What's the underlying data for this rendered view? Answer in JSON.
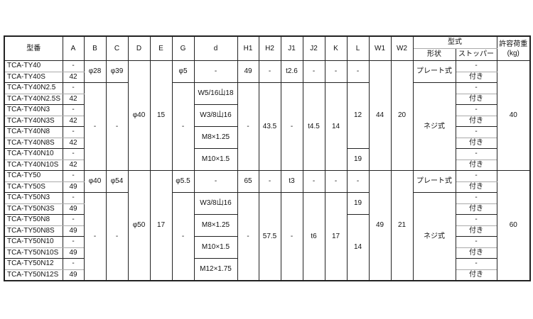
{
  "header": {
    "top": [
      [
        "型番",
        2,
        1
      ],
      [
        "A",
        2,
        1
      ],
      [
        "B",
        2,
        1
      ],
      [
        "C",
        2,
        1
      ],
      [
        "D",
        2,
        1
      ],
      [
        "E",
        2,
        1
      ],
      [
        "G",
        2,
        1
      ],
      [
        "d",
        2,
        1
      ],
      [
        "H1",
        2,
        1
      ],
      [
        "H2",
        2,
        1
      ],
      [
        "J1",
        2,
        1
      ],
      [
        "J2",
        2,
        1
      ],
      [
        "K",
        2,
        1
      ],
      [
        "L",
        2,
        1
      ],
      [
        "W1",
        2,
        1
      ],
      [
        "W2",
        2,
        1
      ],
      [
        "型式",
        1,
        2
      ],
      [
        "許容荷重\n(kg)",
        2,
        1
      ]
    ],
    "sub": [
      "形状",
      "ストッパー"
    ]
  },
  "rows": [
    [
      [
        "TCA-TY40",
        1
      ],
      [
        "-",
        1
      ],
      [
        "φ28",
        2
      ],
      [
        "φ39",
        2
      ],
      [
        "φ40",
        10
      ],
      [
        "15",
        10
      ],
      [
        "φ5",
        2
      ],
      [
        "-",
        2
      ],
      [
        "49",
        2
      ],
      [
        "-",
        2
      ],
      [
        "t2.6",
        2
      ],
      [
        "-",
        2
      ],
      [
        "-",
        2
      ],
      [
        "-",
        2
      ],
      [
        "44",
        10
      ],
      [
        "20",
        10
      ],
      [
        "プレート式",
        2
      ],
      [
        "-",
        1
      ],
      [
        "40",
        10
      ]
    ],
    [
      [
        "TCA-TY40S",
        1
      ],
      [
        "42",
        1
      ],
      [
        "付き",
        1
      ]
    ],
    [
      [
        "TCA-TY40N2.5",
        1
      ],
      [
        "-",
        1
      ],
      [
        "-",
        8
      ],
      [
        "-",
        8
      ],
      [
        "-",
        8
      ],
      [
        "W5/16山18",
        2
      ],
      [
        "-",
        8
      ],
      [
        "43.5",
        8
      ],
      [
        "-",
        8
      ],
      [
        "t4.5",
        8
      ],
      [
        "14",
        8
      ],
      [
        "12",
        6
      ],
      [
        "ネジ式",
        8
      ],
      [
        "-",
        1
      ]
    ],
    [
      [
        "TCA-TY40N2.5S",
        1
      ],
      [
        "42",
        1
      ],
      [
        "付き",
        1
      ]
    ],
    [
      [
        "TCA-TY40N3",
        1
      ],
      [
        "-",
        1
      ],
      [
        "W3/8山16",
        2
      ],
      [
        "-",
        1
      ]
    ],
    [
      [
        "TCA-TY40N3S",
        1
      ],
      [
        "42",
        1
      ],
      [
        "付き",
        1
      ]
    ],
    [
      [
        "TCA-TY40N8",
        1
      ],
      [
        "-",
        1
      ],
      [
        "M8×1.25",
        2
      ],
      [
        "-",
        1
      ]
    ],
    [
      [
        "TCA-TY40N8S",
        1
      ],
      [
        "42",
        1
      ],
      [
        "付き",
        1
      ]
    ],
    [
      [
        "TCA-TY40N10",
        1
      ],
      [
        "-",
        1
      ],
      [
        "M10×1.5",
        2
      ],
      [
        "19",
        2
      ],
      [
        "-",
        1
      ]
    ],
    [
      [
        "TCA-TY40N10S",
        1
      ],
      [
        "42",
        1
      ],
      [
        "付き",
        1
      ]
    ],
    [
      [
        "TCA-TY50",
        1
      ],
      [
        "-",
        1
      ],
      [
        "φ40",
        2
      ],
      [
        "φ54",
        2
      ],
      [
        "φ50",
        10
      ],
      [
        "17",
        10
      ],
      [
        "φ5.5",
        2
      ],
      [
        "-",
        2
      ],
      [
        "65",
        2
      ],
      [
        "-",
        2
      ],
      [
        "t3",
        2
      ],
      [
        "-",
        2
      ],
      [
        "-",
        2
      ],
      [
        "-",
        2
      ],
      [
        "49",
        10
      ],
      [
        "21",
        10
      ],
      [
        "プレート式",
        2
      ],
      [
        "-",
        1
      ],
      [
        "60",
        10
      ]
    ],
    [
      [
        "TCA-TY50S",
        1
      ],
      [
        "49",
        1
      ],
      [
        "付き",
        1
      ]
    ],
    [
      [
        "TCA-TY50N3",
        1
      ],
      [
        "-",
        1
      ],
      [
        "-",
        8
      ],
      [
        "-",
        8
      ],
      [
        "-",
        8
      ],
      [
        "W3/8山16",
        2
      ],
      [
        "-",
        8
      ],
      [
        "57.5",
        8
      ],
      [
        "-",
        8
      ],
      [
        "t6",
        8
      ],
      [
        "17",
        8
      ],
      [
        "19",
        2
      ],
      [
        "ネジ式",
        8
      ],
      [
        "-",
        1
      ]
    ],
    [
      [
        "TCA-TY50N3S",
        1
      ],
      [
        "49",
        1
      ],
      [
        "付き",
        1
      ]
    ],
    [
      [
        "TCA-TY50N8",
        1
      ],
      [
        "-",
        1
      ],
      [
        "M8×1.25",
        2
      ],
      [
        "14",
        6
      ],
      [
        "-",
        1
      ]
    ],
    [
      [
        "TCA-TY50N8S",
        1
      ],
      [
        "49",
        1
      ],
      [
        "付き",
        1
      ]
    ],
    [
      [
        "TCA-TY50N10",
        1
      ],
      [
        "-",
        1
      ],
      [
        "M10×1.5",
        2
      ],
      [
        "-",
        1
      ]
    ],
    [
      [
        "TCA-TY50N10S",
        1
      ],
      [
        "49",
        1
      ],
      [
        "付き",
        1
      ]
    ],
    [
      [
        "TCA-TY50N12",
        1
      ],
      [
        "-",
        1
      ],
      [
        "M12×1.75",
        2
      ],
      [
        "-",
        1
      ]
    ],
    [
      [
        "TCA-TY50N12S",
        1
      ],
      [
        "49",
        1
      ],
      [
        "付き",
        1
      ]
    ]
  ]
}
